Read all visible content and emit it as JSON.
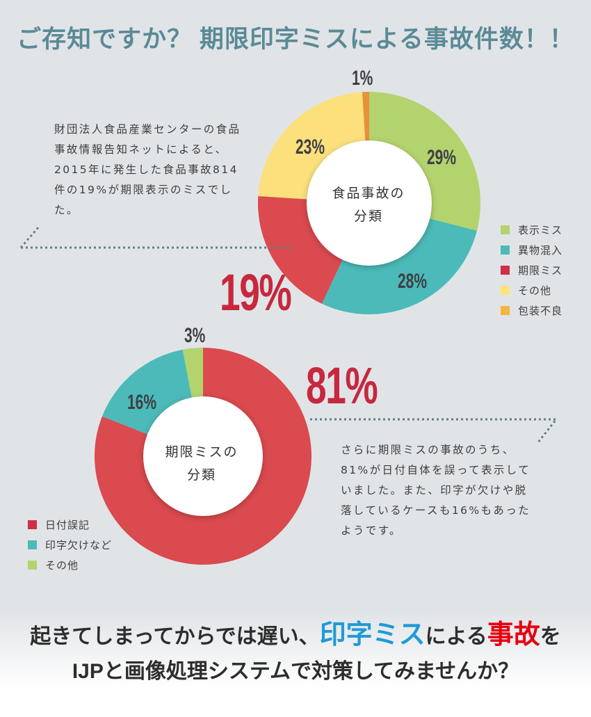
{
  "title": "ご存知ですか？ 期限印字ミスによる事故件数！！",
  "paragraph1": "財団法人食品産業センターの食品事故情報告知ネットによると、2015年に発生した食品事故814件の19%が期限表示のミスでした。",
  "paragraph2": "さらに期限ミスの事故のうち、81%が日付自体を誤って表示していました。また、印字が欠けや脱落しているケースも16%もあったようです。",
  "big19": "19%",
  "big81": "81%",
  "cta": {
    "line1_a": "起きてしまってからでは遅い、",
    "line1_blue": "印字ミス",
    "line1_b": "による",
    "line1_red": "事故",
    "line1_c": "を",
    "line2": "IJPと画像処理システムで対策してみませんか？"
  },
  "chart_data": [
    {
      "type": "pie",
      "title": "食品事故の分類",
      "center_label_1": "食品事故の",
      "center_label_2": "分類",
      "legend_placement": "right",
      "categories": [
        "表示ミス",
        "異物混入",
        "期限ミス",
        "その他",
        "包装不良"
      ],
      "values": [
        29,
        28,
        19,
        23,
        1
      ],
      "labels": [
        "29%",
        "28%",
        "19%",
        "23%",
        "1%"
      ],
      "colors": [
        "#b3d36e",
        "#4bbab9",
        "#da4a4e",
        "#fbe07c",
        "#e8913a"
      ],
      "legend_colors": [
        "#b3d36e",
        "#4bbab9",
        "#cf2f45",
        "#fde37a",
        "#f5b53f"
      ]
    },
    {
      "type": "pie",
      "title": "期限ミスの分類",
      "center_label_1": "期限ミスの",
      "center_label_2": "分類",
      "legend_placement": "bottom-left",
      "categories": [
        "日付誤記",
        "印字欠けなど",
        "その他"
      ],
      "values": [
        81,
        16,
        3
      ],
      "labels": [
        "81%",
        "16%",
        "3%"
      ],
      "colors": [
        "#da4a4e",
        "#4bbab9",
        "#b3d36e"
      ],
      "legend_colors": [
        "#cf2f45",
        "#4bbab9",
        "#b3d36e"
      ]
    }
  ]
}
